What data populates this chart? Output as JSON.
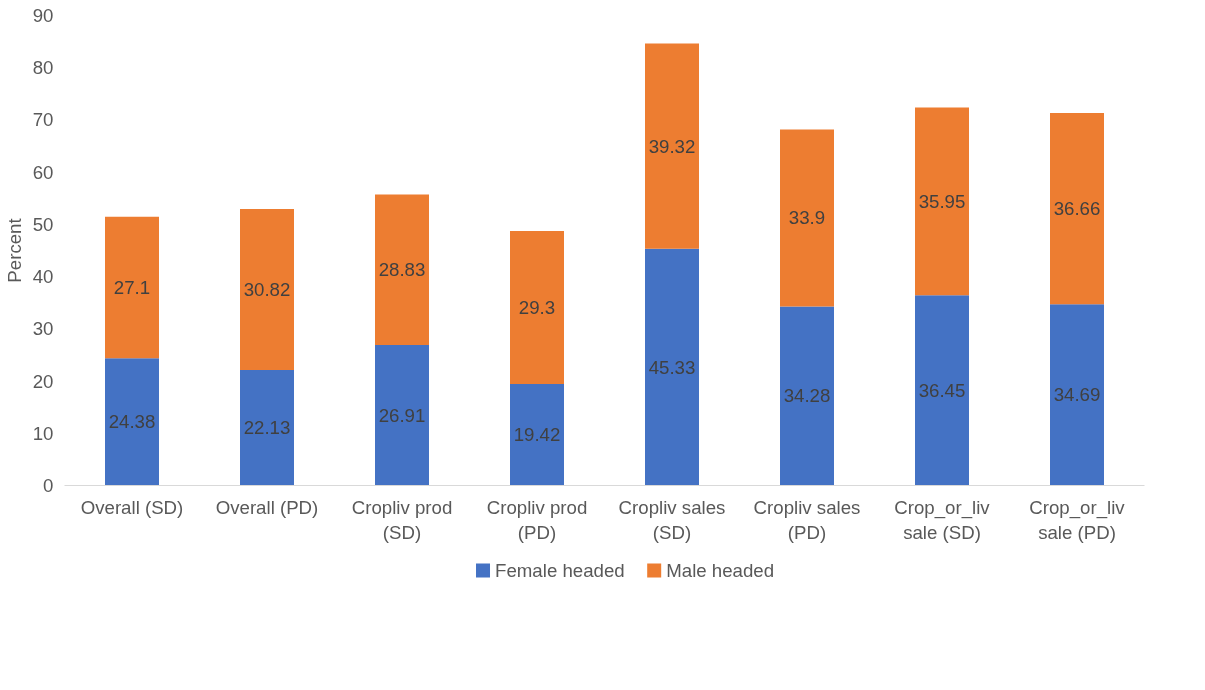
{
  "chart_data": {
    "type": "bar",
    "stacked": true,
    "ylabel": "Percent",
    "categories": [
      "Overall (SD)",
      "Overall (PD)",
      "Cropliv prod (SD)",
      "Cropliv prod (PD)",
      "Cropliv sales (SD)",
      "Cropliv sales (PD)",
      "Crop_or_liv sale (SD)",
      "Crop_or_liv sale (PD)"
    ],
    "series": [
      {
        "name": "Female headed",
        "color": "#4472c4",
        "values": [
          24.38,
          22.13,
          26.91,
          19.42,
          45.33,
          34.28,
          36.45,
          34.69
        ]
      },
      {
        "name": "Male headed",
        "color": "#ed7d31",
        "values": [
          27.1,
          30.82,
          28.83,
          29.3,
          39.32,
          33.9,
          35.95,
          36.66
        ]
      }
    ],
    "ylim": [
      0,
      90
    ],
    "yticks": [
      0,
      10,
      20,
      30,
      40,
      50,
      60,
      70,
      80,
      90
    ],
    "grid": false,
    "legend": "bottom",
    "data_labels": true
  }
}
